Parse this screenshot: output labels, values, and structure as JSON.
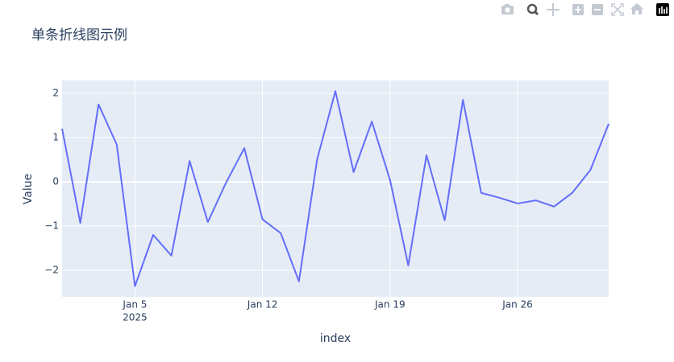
{
  "chart_data": {
    "type": "line",
    "title": "单条折线图示例",
    "x_label": "index",
    "y_label": "Value",
    "x": [
      "2025-01-01",
      "2025-01-02",
      "2025-01-03",
      "2025-01-04",
      "2025-01-05",
      "2025-01-06",
      "2025-01-07",
      "2025-01-08",
      "2025-01-09",
      "2025-01-10",
      "2025-01-11",
      "2025-01-12",
      "2025-01-13",
      "2025-01-14",
      "2025-01-15",
      "2025-01-16",
      "2025-01-17",
      "2025-01-18",
      "2025-01-19",
      "2025-01-20",
      "2025-01-21",
      "2025-01-22",
      "2025-01-23",
      "2025-01-24",
      "2025-01-25",
      "2025-01-26",
      "2025-01-27",
      "2025-01-28",
      "2025-01-29",
      "2025-01-30",
      "2025-01-31"
    ],
    "values": [
      1.2,
      -0.93,
      1.75,
      0.84,
      -2.36,
      -1.2,
      -1.67,
      0.47,
      -0.91,
      -0.02,
      0.76,
      -0.85,
      -1.16,
      -2.25,
      0.51,
      2.05,
      0.22,
      1.36,
      0.04,
      -1.89,
      0.6,
      -0.87,
      1.85,
      -0.25,
      -0.36,
      -0.49,
      -0.42,
      -0.56,
      -0.25,
      0.27,
      1.31
    ],
    "color": "#636efa",
    "xlim": [
      "2025-01-01",
      "2025-01-31"
    ],
    "xticks": [
      {
        "value": "2025-01-05",
        "label": "Jan 5"
      },
      {
        "value": "2025-01-12",
        "label": "Jan 12"
      },
      {
        "value": "2025-01-19",
        "label": "Jan 19"
      },
      {
        "value": "2025-01-26",
        "label": "Jan 26"
      }
    ],
    "x_year_label": "2025",
    "ylim": [
      -2.6,
      2.29
    ],
    "yticks": [
      {
        "value": -2,
        "label": "−2"
      },
      {
        "value": -1,
        "label": "−1"
      },
      0,
      1,
      2
    ],
    "grid": true
  }
}
